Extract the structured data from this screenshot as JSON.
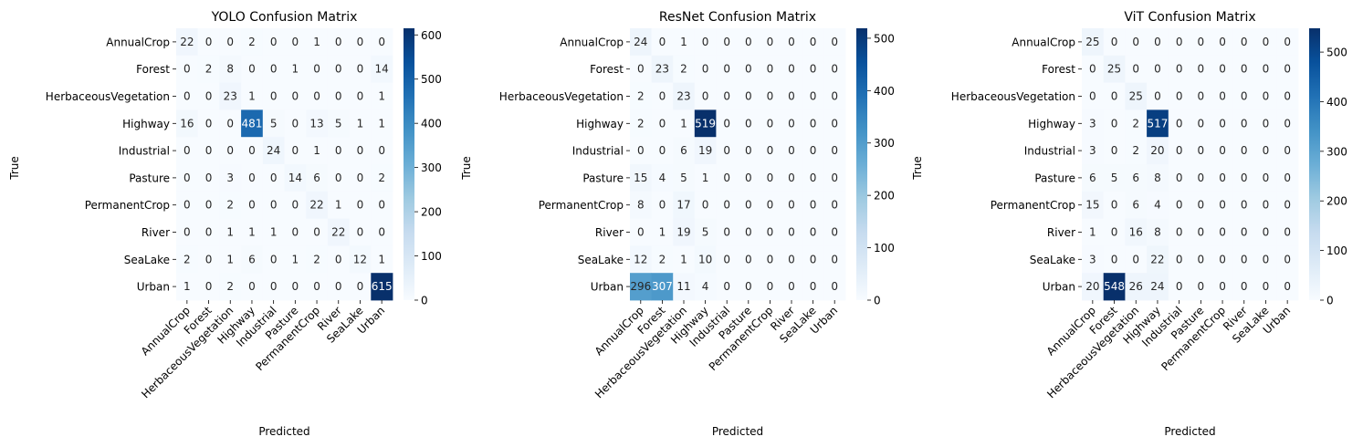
{
  "chart_data": [
    {
      "type": "heatmap",
      "title": "YOLO Confusion Matrix",
      "xlabel": "Predicted",
      "ylabel": "True",
      "categories": [
        "AnnualCrop",
        "Forest",
        "HerbaceousVegetation",
        "Highway",
        "Industrial",
        "Pasture",
        "PermanentCrop",
        "River",
        "SeaLake",
        "Urban"
      ],
      "matrix": [
        [
          22,
          0,
          0,
          2,
          0,
          0,
          1,
          0,
          0,
          0
        ],
        [
          0,
          2,
          8,
          0,
          0,
          1,
          0,
          0,
          0,
          14
        ],
        [
          0,
          0,
          23,
          1,
          0,
          0,
          0,
          0,
          0,
          1
        ],
        [
          16,
          0,
          0,
          481,
          5,
          0,
          13,
          5,
          1,
          1
        ],
        [
          0,
          0,
          0,
          0,
          24,
          0,
          1,
          0,
          0,
          0
        ],
        [
          0,
          0,
          3,
          0,
          0,
          14,
          6,
          0,
          0,
          2
        ],
        [
          0,
          0,
          2,
          0,
          0,
          0,
          22,
          1,
          0,
          0
        ],
        [
          0,
          0,
          1,
          1,
          1,
          0,
          0,
          22,
          0,
          0
        ],
        [
          2,
          0,
          1,
          6,
          0,
          1,
          2,
          0,
          12,
          1
        ],
        [
          1,
          0,
          2,
          0,
          0,
          0,
          0,
          0,
          0,
          615
        ]
      ],
      "colorbar": {
        "min": 0,
        "max": 615,
        "ticks": [
          0,
          100,
          200,
          300,
          400,
          500,
          600
        ],
        "colormap": "Blues"
      }
    },
    {
      "type": "heatmap",
      "title": "ResNet Confusion Matrix",
      "xlabel": "Predicted",
      "ylabel": "True",
      "categories": [
        "AnnualCrop",
        "Forest",
        "HerbaceousVegetation",
        "Highway",
        "Industrial",
        "Pasture",
        "PermanentCrop",
        "River",
        "SeaLake",
        "Urban"
      ],
      "matrix": [
        [
          24,
          0,
          1,
          0,
          0,
          0,
          0,
          0,
          0,
          0
        ],
        [
          0,
          23,
          2,
          0,
          0,
          0,
          0,
          0,
          0,
          0
        ],
        [
          2,
          0,
          23,
          0,
          0,
          0,
          0,
          0,
          0,
          0
        ],
        [
          2,
          0,
          1,
          519,
          0,
          0,
          0,
          0,
          0,
          0
        ],
        [
          0,
          0,
          6,
          19,
          0,
          0,
          0,
          0,
          0,
          0
        ],
        [
          15,
          4,
          5,
          1,
          0,
          0,
          0,
          0,
          0,
          0
        ],
        [
          8,
          0,
          17,
          0,
          0,
          0,
          0,
          0,
          0,
          0
        ],
        [
          0,
          1,
          19,
          5,
          0,
          0,
          0,
          0,
          0,
          0
        ],
        [
          12,
          2,
          1,
          10,
          0,
          0,
          0,
          0,
          0,
          0
        ],
        [
          296,
          307,
          11,
          4,
          0,
          0,
          0,
          0,
          0,
          0
        ]
      ],
      "colorbar": {
        "min": 0,
        "max": 519,
        "ticks": [
          0,
          100,
          200,
          300,
          400,
          500
        ],
        "colormap": "Blues"
      }
    },
    {
      "type": "heatmap",
      "title": "ViT Confusion Matrix",
      "xlabel": "Predicted",
      "ylabel": "True",
      "categories": [
        "AnnualCrop",
        "Forest",
        "HerbaceousVegetation",
        "Highway",
        "Industrial",
        "Pasture",
        "PermanentCrop",
        "River",
        "SeaLake",
        "Urban"
      ],
      "matrix": [
        [
          25,
          0,
          0,
          0,
          0,
          0,
          0,
          0,
          0,
          0
        ],
        [
          0,
          25,
          0,
          0,
          0,
          0,
          0,
          0,
          0,
          0
        ],
        [
          0,
          0,
          25,
          0,
          0,
          0,
          0,
          0,
          0,
          0
        ],
        [
          3,
          0,
          2,
          517,
          0,
          0,
          0,
          0,
          0,
          0
        ],
        [
          3,
          0,
          2,
          20,
          0,
          0,
          0,
          0,
          0,
          0
        ],
        [
          6,
          5,
          6,
          8,
          0,
          0,
          0,
          0,
          0,
          0
        ],
        [
          15,
          0,
          6,
          4,
          0,
          0,
          0,
          0,
          0,
          0
        ],
        [
          1,
          0,
          16,
          8,
          0,
          0,
          0,
          0,
          0,
          0
        ],
        [
          3,
          0,
          0,
          22,
          0,
          0,
          0,
          0,
          0,
          0
        ],
        [
          20,
          548,
          26,
          24,
          0,
          0,
          0,
          0,
          0,
          0
        ]
      ],
      "colorbar": {
        "min": 0,
        "max": 548,
        "ticks": [
          0,
          100,
          200,
          300,
          400,
          500
        ],
        "colormap": "Blues"
      }
    }
  ]
}
